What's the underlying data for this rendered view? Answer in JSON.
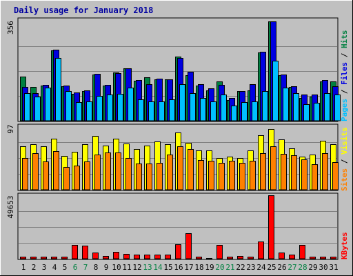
{
  "chart_data": {
    "type": "bar",
    "title": "Daily usage for January 2018",
    "categories": [
      "1",
      "2",
      "3",
      "4",
      "5",
      "6",
      "7",
      "8",
      "9",
      "10",
      "11",
      "12",
      "13",
      "14",
      "15",
      "16",
      "17",
      "18",
      "19",
      "20",
      "21",
      "22",
      "23",
      "24",
      "25",
      "26",
      "27",
      "28",
      "29",
      "30",
      "31"
    ],
    "weekend_days": [
      "6",
      "7",
      "13",
      "14",
      "20",
      "21",
      "27",
      "28"
    ],
    "panels": [
      {
        "name": "top",
        "ymax_label": "356",
        "ymax": 356,
        "ylim": [
          0,
          356
        ],
        "right_labels": [
          "Pages",
          "/",
          "Files",
          "/",
          "Hits"
        ],
        "series": [
          {
            "name": "Hits",
            "color": "#008040",
            "values": [
              158,
              120,
              126,
              252,
              124,
              96,
              106,
              166,
              126,
              174,
              188,
              144,
              155,
              148,
              148,
              230,
              164,
              126,
              110,
              140,
              74,
              106,
              110,
              244,
              356,
              162,
              120,
              82,
              86,
              140,
              140
            ]
          },
          {
            "name": "Files",
            "color": "#0000e0",
            "values": [
              122,
              98,
              128,
              254,
              126,
              102,
              110,
              168,
              128,
              170,
              188,
              146,
              130,
              150,
              148,
              224,
              176,
              132,
              116,
              128,
              82,
              106,
              132,
              246,
              356,
              166,
              124,
              94,
              94,
              146,
              124
            ]
          },
          {
            "name": "Pages",
            "color": "#00c0ff",
            "values": [
              100,
              86,
              118,
              226,
              106,
              66,
              68,
              88,
              94,
              96,
              118,
              76,
              70,
              70,
              76,
              130,
              98,
              82,
              68,
              94,
              54,
              66,
              70,
              106,
              214,
              118,
              98,
              60,
              64,
              100,
              94
            ]
          }
        ]
      },
      {
        "name": "middle",
        "ymax_label": "97",
        "ymax": 97,
        "ylim": [
          0,
          97
        ],
        "right_labels": [
          "Sites",
          "/",
          "Visits"
        ],
        "series": [
          {
            "name": "Visits",
            "color": "#ffff00",
            "values": [
              66,
              70,
              66,
              78,
              52,
              58,
              70,
              82,
              68,
              78,
              71,
              62,
              68,
              74,
              70,
              87,
              72,
              60,
              60,
              48,
              51,
              49,
              60,
              83,
              93,
              77,
              63,
              51,
              54,
              75,
              70
            ]
          },
          {
            "name": "Sites",
            "color": "#ff8000",
            "values": [
              49,
              56,
              43,
              59,
              35,
              37,
              43,
              54,
              57,
              57,
              49,
              40,
              40,
              41,
              54,
              66,
              62,
              45,
              44,
              41,
              44,
              41,
              44,
              56,
              66,
              55,
              53,
              46,
              39,
              56,
              42
            ]
          }
        ]
      },
      {
        "name": "bottom",
        "ymax_label": "49653",
        "ymax": 49653,
        "ylim": [
          0,
          49653
        ],
        "right_labels": [
          "KBytes"
        ],
        "series": [
          {
            "name": "KBytes",
            "color": "#ff0000",
            "values": [
              1500,
              1500,
              1500,
              1500,
              1500,
              11000,
              10200,
              4800,
              2000,
              5500,
              4000,
              3300,
              3100,
              3000,
              3000,
              11200,
              20000,
              1800,
              500,
              11000,
              1500,
              2400,
              1500,
              13400,
              49653,
              4600,
              3300,
              11000,
              1500,
              1500,
              1500
            ]
          }
        ]
      }
    ]
  }
}
